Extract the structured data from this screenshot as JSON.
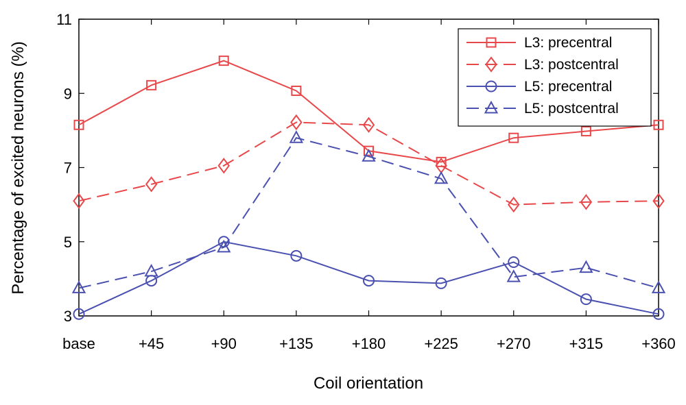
{
  "chart_data": {
    "type": "line",
    "xlabel": "Coil orientation",
    "ylabel": "Percentage of  excited neurons (%)",
    "categories": [
      "base",
      "+45",
      "+90",
      "+135",
      "+180",
      "+225",
      "+270",
      "+315",
      "+360"
    ],
    "ylim": [
      3,
      11
    ],
    "yticks": [
      3,
      5,
      7,
      9,
      11
    ],
    "grid": false,
    "legend_position": "top-right",
    "series": [
      {
        "name": "L3: precentral",
        "color": "#e8484a",
        "dash": "solid",
        "marker": "square",
        "values": [
          8.15,
          9.22,
          9.88,
          9.07,
          7.45,
          7.15,
          7.8,
          7.98,
          8.15
        ]
      },
      {
        "name": "L3: postcentral",
        "color": "#e8484a",
        "dash": "dashed",
        "marker": "diamond",
        "values": [
          6.1,
          6.55,
          7.05,
          8.22,
          8.15,
          7.05,
          6.0,
          6.07,
          6.1
        ]
      },
      {
        "name": "L5: precentral",
        "color": "#4a50b0",
        "dash": "solid",
        "marker": "circle",
        "values": [
          3.05,
          3.95,
          5.0,
          4.62,
          3.95,
          3.88,
          4.45,
          3.45,
          3.05
        ]
      },
      {
        "name": "L5: postcentral",
        "color": "#4a50b0",
        "dash": "dashed",
        "marker": "triangle",
        "values": [
          3.75,
          4.2,
          4.85,
          7.8,
          7.3,
          6.7,
          4.05,
          4.3,
          3.75
        ]
      }
    ]
  }
}
